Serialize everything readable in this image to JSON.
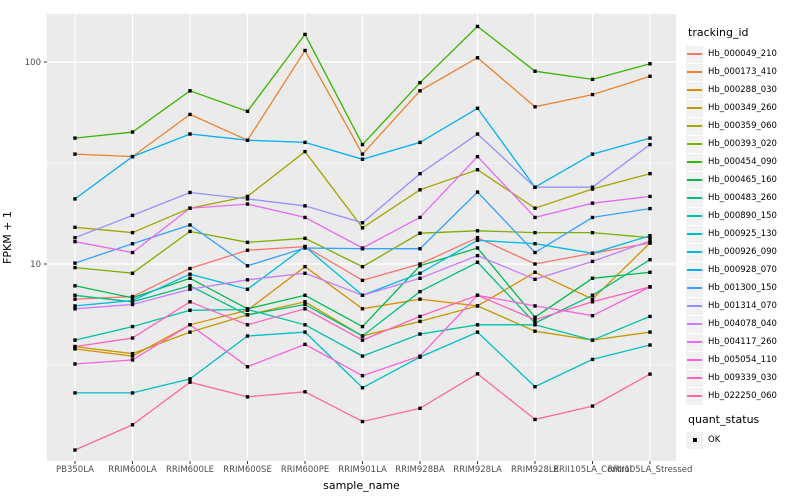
{
  "chart_data": {
    "type": "line",
    "title": "",
    "xlabel": "sample_name",
    "ylabel": "FPKM + 1",
    "legend_title": "tracking_id",
    "quant_legend": {
      "title": "quant_status",
      "items": [
        {
          "label": "OK",
          "marker": "black-square"
        }
      ]
    },
    "x_categories": [
      "PB350LA",
      "RRIM600LA",
      "RRIM600LE",
      "RRIM600SE",
      "RRIM600PE",
      "RRIM901LA",
      "RRIM928BA",
      "RRIM928LA",
      "RRIM928LE",
      "RRII105LA_Control",
      "RRII105LA_Stressed"
    ],
    "y_axis": {
      "scale": "log10",
      "ticks": [
        10,
        100
      ],
      "tick_labels": [
        "10",
        "100"
      ],
      "minor_ticks": [
        3.162,
        31.62
      ],
      "range": [
        1.1,
        170
      ]
    },
    "legend_position": "right",
    "grid": true,
    "panel_background": "#EBEBEB",
    "gridline_color": "#FFFFFF",
    "marker_color": "#000000",
    "marker_shape": "square",
    "series": [
      {
        "name": "Hb_000049_210",
        "color": "#F8766D",
        "values": [
          6.7,
          6.9,
          9.5,
          11.7,
          12.2,
          8.3,
          10.0,
          13.5,
          10.0,
          11.3,
          12.7
        ]
      },
      {
        "name": "Hb_000173_410",
        "color": "#EA8331",
        "values": [
          35,
          34,
          55,
          41,
          114,
          35,
          72,
          105,
          60,
          69,
          85
        ]
      },
      {
        "name": "Hb_000288_030",
        "color": "#D89000",
        "values": [
          3.8,
          3.5,
          5.0,
          5.9,
          9.7,
          6.0,
          6.7,
          6.2,
          9.1,
          6.7,
          12.7
        ]
      },
      {
        "name": "Hb_000349_260",
        "color": "#C09B00",
        "values": [
          3.9,
          3.6,
          4.6,
          5.6,
          6.5,
          4.4,
          5.2,
          6.2,
          4.65,
          4.2,
          4.6
        ]
      },
      {
        "name": "Hb_000359_060",
        "color": "#A3A500",
        "values": [
          15.2,
          14.3,
          18.9,
          21.6,
          36,
          15.1,
          23.3,
          29.3,
          18.9,
          23.5,
          28
        ]
      },
      {
        "name": "Hb_000393_020",
        "color": "#7CAE00",
        "values": [
          9.6,
          9.0,
          14.5,
          12.8,
          13.4,
          9.7,
          14.2,
          14.6,
          14.3,
          14.3,
          13.5
        ]
      },
      {
        "name": "Hb_000454_090",
        "color": "#39B600",
        "values": [
          42,
          45,
          72,
          57,
          137,
          39,
          79,
          150,
          90,
          82,
          98
        ]
      },
      {
        "name": "Hb_000465_160",
        "color": "#00BB4E",
        "values": [
          7.8,
          6.8,
          8.5,
          6.0,
          7.0,
          4.9,
          9.8,
          12.0,
          5.45,
          8.5,
          9.1
        ]
      },
      {
        "name": "Hb_000483_260",
        "color": "#00BF7D",
        "values": [
          7.0,
          6.5,
          7.8,
          5.6,
          6.3,
          4.4,
          7.3,
          10.2,
          5.1,
          7.0,
          10.5
        ]
      },
      {
        "name": "Hb_000890_150",
        "color": "#00C1A3",
        "values": [
          4.2,
          4.9,
          5.9,
          5.95,
          5.0,
          3.5,
          4.5,
          5.0,
          5.0,
          4.2,
          5.5
        ]
      },
      {
        "name": "Hb_000925_130",
        "color": "#00BFC4",
        "values": [
          2.3,
          2.3,
          2.7,
          4.4,
          4.6,
          2.44,
          3.46,
          4.6,
          2.47,
          3.37,
          3.97
        ]
      },
      {
        "name": "Hb_000926_090",
        "color": "#00BAE0",
        "values": [
          6.2,
          6.6,
          8.9,
          7.5,
          12.2,
          7.0,
          9.0,
          13.1,
          12.6,
          11.3,
          13.8
        ]
      },
      {
        "name": "Hb_000928_070",
        "color": "#00B0F6",
        "values": [
          21,
          34,
          44,
          41,
          40,
          33,
          40,
          59,
          24,
          35,
          42
        ]
      },
      {
        "name": "Hb_001300_150",
        "color": "#35A2FF",
        "values": [
          10.1,
          12.6,
          15.6,
          9.8,
          12.0,
          11.9,
          11.9,
          22.7,
          11.4,
          17.0,
          18.8
        ]
      },
      {
        "name": "Hb_001314_070",
        "color": "#9590FF",
        "values": [
          13.5,
          17.4,
          22.6,
          21.0,
          19.4,
          16.0,
          28,
          44,
          24,
          24,
          39
        ]
      },
      {
        "name": "Hb_004078_040",
        "color": "#C77CFF",
        "values": [
          6.0,
          6.3,
          7.5,
          8.35,
          9.0,
          7.0,
          8.5,
          11.0,
          8.4,
          10.3,
          13.0
        ]
      },
      {
        "name": "Hb_004117_260",
        "color": "#E76BF3",
        "values": [
          12.9,
          11.4,
          18.9,
          19.8,
          17.0,
          12.0,
          17.0,
          34,
          17.0,
          20.0,
          21.6
        ]
      },
      {
        "name": "Hb_005054_110",
        "color": "#FA62DB",
        "values": [
          3.2,
          3.35,
          5.0,
          3.1,
          4.0,
          2.8,
          3.5,
          7.0,
          6.2,
          5.55,
          7.7
        ]
      },
      {
        "name": "Hb_009339_030",
        "color": "#FF62BC",
        "values": [
          3.9,
          4.3,
          6.5,
          5.0,
          6.0,
          4.2,
          5.5,
          7.0,
          5.3,
          6.5,
          7.7
        ]
      },
      {
        "name": "Hb_022250_060",
        "color": "#FF6A98",
        "values": [
          1.2,
          1.6,
          2.6,
          2.2,
          2.33,
          1.66,
          1.93,
          2.86,
          1.7,
          1.98,
          2.85
        ]
      }
    ]
  }
}
